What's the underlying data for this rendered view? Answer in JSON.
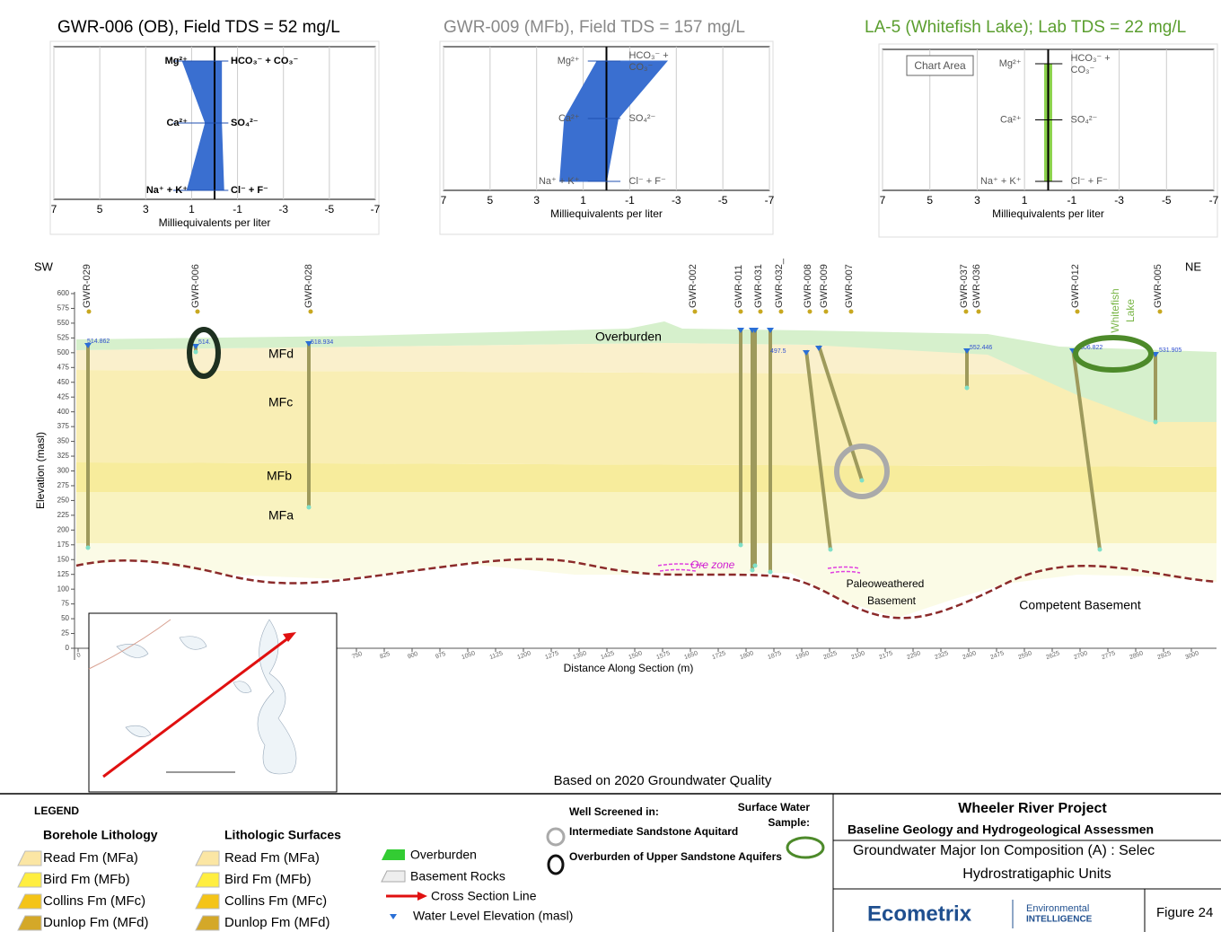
{
  "stiff_diagrams": [
    {
      "title": "GWR-006 (OB), Field TDS = 52 mg/L",
      "cations": [
        "Mg²⁺",
        "Ca²⁺",
        "Na⁺ + K⁺"
      ],
      "anions": [
        [
          "HCO₃⁻ + CO₃⁻"
        ],
        [
          "SO₄²⁻"
        ],
        [
          "Cl⁻ + F⁻"
        ]
      ],
      "x_ticks": [
        7,
        5,
        3,
        1,
        -1,
        -3,
        -5,
        -7
      ],
      "x_label": "Milliequivalents per liter"
    },
    {
      "title": "GWR-009 (MFb), Field TDS = 157 mg/L",
      "cations": [
        "Mg²⁺",
        "Ca²⁺",
        "Na⁺ + K⁺"
      ],
      "anions": [
        [
          "HCO₃⁻ +",
          "CO₃⁻"
        ],
        [
          "SO₄²⁻"
        ],
        [
          "Cl⁻ + F⁻"
        ]
      ],
      "x_ticks": [
        7,
        5,
        3,
        1,
        -1,
        -3,
        -5,
        -7
      ],
      "x_label": "Milliequivalents per liter"
    },
    {
      "title": "LA-5 (Whitefish Lake); Lab TDS = 22 mg/L",
      "chart_area_label": "Chart Area",
      "cations": [
        "Mg²⁺",
        "Ca²⁺",
        "Na⁺ + K⁺"
      ],
      "anions": [
        [
          "HCO₃⁻ +",
          "CO₃⁻"
        ],
        [
          "SO₄²⁻"
        ],
        [
          "Cl⁻ + F⁻"
        ]
      ],
      "x_ticks": [
        7,
        5,
        3,
        1,
        -1,
        -3,
        -5,
        -7
      ],
      "x_label": "Milliequivalents per liter"
    }
  ],
  "cross_section": {
    "sw": "SW",
    "ne": "NE",
    "wells": [
      "GWR-029",
      "GWR-006",
      "GWR-028",
      "GWR-002",
      "GWR-011",
      "GWR-031",
      "GWR-032_",
      "GWR-008",
      "GWR-009",
      "GWR-007",
      "GWR-037",
      "GWR-036",
      "GWR-012",
      "GWR-005"
    ],
    "lake_label": [
      "Whitefish",
      "Lake"
    ],
    "water_levels": [
      "514.862",
      "514.",
      "518.934",
      "497.5",
      "552.446",
      "506.822",
      "531.905"
    ],
    "units": [
      "Overburden",
      "MFd",
      "MFc",
      "MFb",
      "MFa"
    ],
    "annotations": [
      "Ore zone",
      "Paleoweathered",
      "Basement",
      "Competent Basement"
    ],
    "y_label": "Elevation (masl)",
    "y_ticks": [
      0,
      25,
      50,
      75,
      100,
      125,
      150,
      175,
      200,
      225,
      250,
      275,
      300,
      325,
      350,
      375,
      400,
      425,
      450,
      475,
      500,
      525,
      550,
      575,
      600
    ],
    "x_label": "Distance Along Section (m)",
    "x_ticks": [
      0,
      75,
      150,
      225,
      300,
      375,
      450,
      525,
      600,
      675,
      750,
      825,
      900,
      975,
      1050,
      1125,
      1200,
      1275,
      1350,
      1425,
      1500,
      1575,
      1650,
      1725,
      1800,
      1875,
      1950,
      2025,
      2100,
      2175,
      2250,
      2325,
      2400,
      2475,
      2550,
      2625,
      2700,
      2775,
      2850,
      2925,
      3000
    ],
    "note": "Based on 2020 Groundwater Quality"
  },
  "legend": {
    "title": "LEGEND",
    "borehole_lithology": {
      "title": "Borehole Lithology",
      "items": [
        "Read Fm (MFa)",
        "Bird Fm (MFb)",
        "Collins Fm (MFc)",
        "Dunlop Fm (MFd)"
      ]
    },
    "lithologic_surfaces": {
      "title": "Lithologic Surfaces",
      "items": [
        "Read Fm (MFa)",
        "Bird Fm (MFb)",
        "Collins Fm (MFc)",
        "Dunlop Fm (MFd)"
      ]
    },
    "other": [
      "Overburden",
      "Basement Rocks",
      "Cross Section Line",
      "Water Level Elevation (masl)"
    ],
    "well_screened": {
      "title": "Well Screened in:",
      "items": [
        "Intermediate Sandstone Aquitard",
        "Overburden of Upper Sandstone Aquifers"
      ]
    },
    "surface_water": [
      "Surface Water",
      "Sample:"
    ]
  },
  "title_block": {
    "project": "Wheeler River Project",
    "subtitle": "Baseline Geology and Hydrogeological Assessmen",
    "description": [
      "Groundwater Major Ion Composition (A) : Selec",
      "Hydrostratigaphic Units"
    ],
    "company": "Ecometrix",
    "tagline": [
      "Environmental",
      "INTELLIGENCE"
    ],
    "figure": "Figure 24"
  }
}
